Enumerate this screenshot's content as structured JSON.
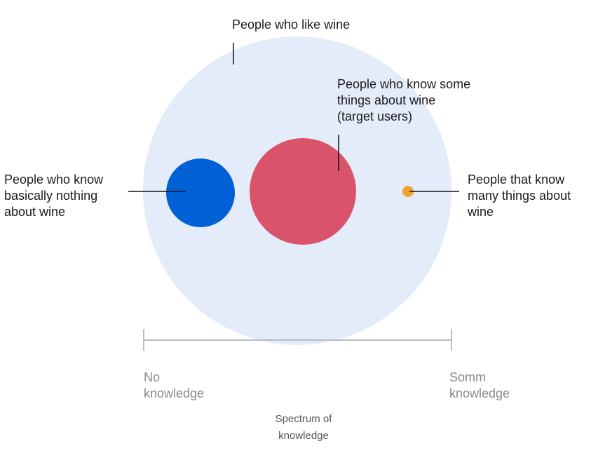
{
  "groups": {
    "all": {
      "label": "People who like wine",
      "fill": "#e3ecf8"
    },
    "novice": {
      "lines": [
        "People who know",
        "basically nothing",
        "about wine"
      ],
      "fill": "#0060d6"
    },
    "target": {
      "lines": [
        "People who know some",
        "things about wine",
        "(target users)"
      ],
      "fill": "#d9546b"
    },
    "expert": {
      "lines": [
        "People that know",
        "many things about",
        "wine"
      ],
      "fill": "#f0a230"
    }
  },
  "axis": {
    "left_lines": [
      "No",
      "knowledge"
    ],
    "right_lines": [
      "Somm",
      "knowledge"
    ],
    "caption_lines": [
      "Spectrum of",
      "knowledge"
    ],
    "color": "#b8bcc6"
  },
  "colors": {
    "leader_line": "#111111",
    "text": "#1b1b1b",
    "muted_text": "#8a8a8a"
  }
}
